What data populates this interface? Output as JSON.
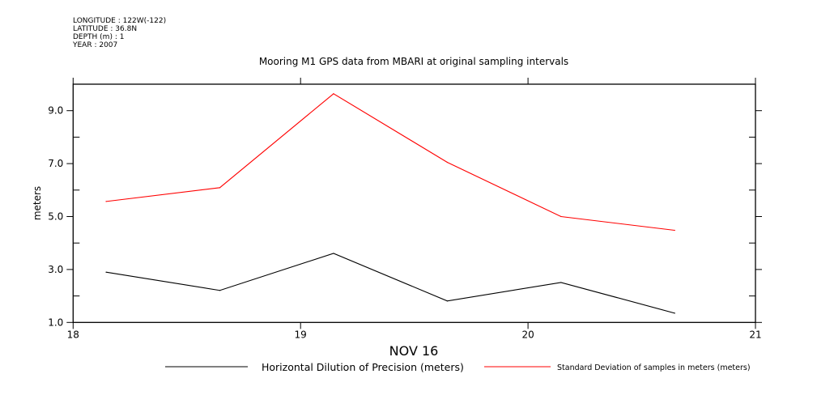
{
  "header": {
    "longitude": "LONGITUDE : 122W(-122)",
    "latitude": "LATITUDE : 36.8N",
    "depth": "DEPTH (m) : 1",
    "year": "YEAR : 2007"
  },
  "chart_data": {
    "type": "line",
    "title": "Mooring M1 GPS data from MBARI at original sampling intervals",
    "xlabel": "NOV 16",
    "ylabel": "meters",
    "xlim": [
      18,
      21
    ],
    "ylim": [
      1.0,
      10.0
    ],
    "xticks": [
      "18",
      "19",
      "20",
      "21"
    ],
    "yticks": [
      "1.0",
      "3.0",
      "5.0",
      "7.0",
      "9.0"
    ],
    "grid": false,
    "legend_position": "bottom",
    "x": [
      18.145,
      18.645,
      19.145,
      19.645,
      20.145,
      20.645
    ],
    "series": [
      {
        "name": "Horizontal Dilution of Precision (meters)",
        "color": "#000000",
        "values": [
          2.9,
          2.21,
          3.61,
          1.81,
          2.51,
          1.35
        ]
      },
      {
        "name": "Standard Deviation of samples in meters (meters)",
        "color": "#ff0000",
        "values": [
          5.57,
          6.09,
          9.64,
          7.05,
          5.0,
          4.48
        ]
      }
    ]
  }
}
